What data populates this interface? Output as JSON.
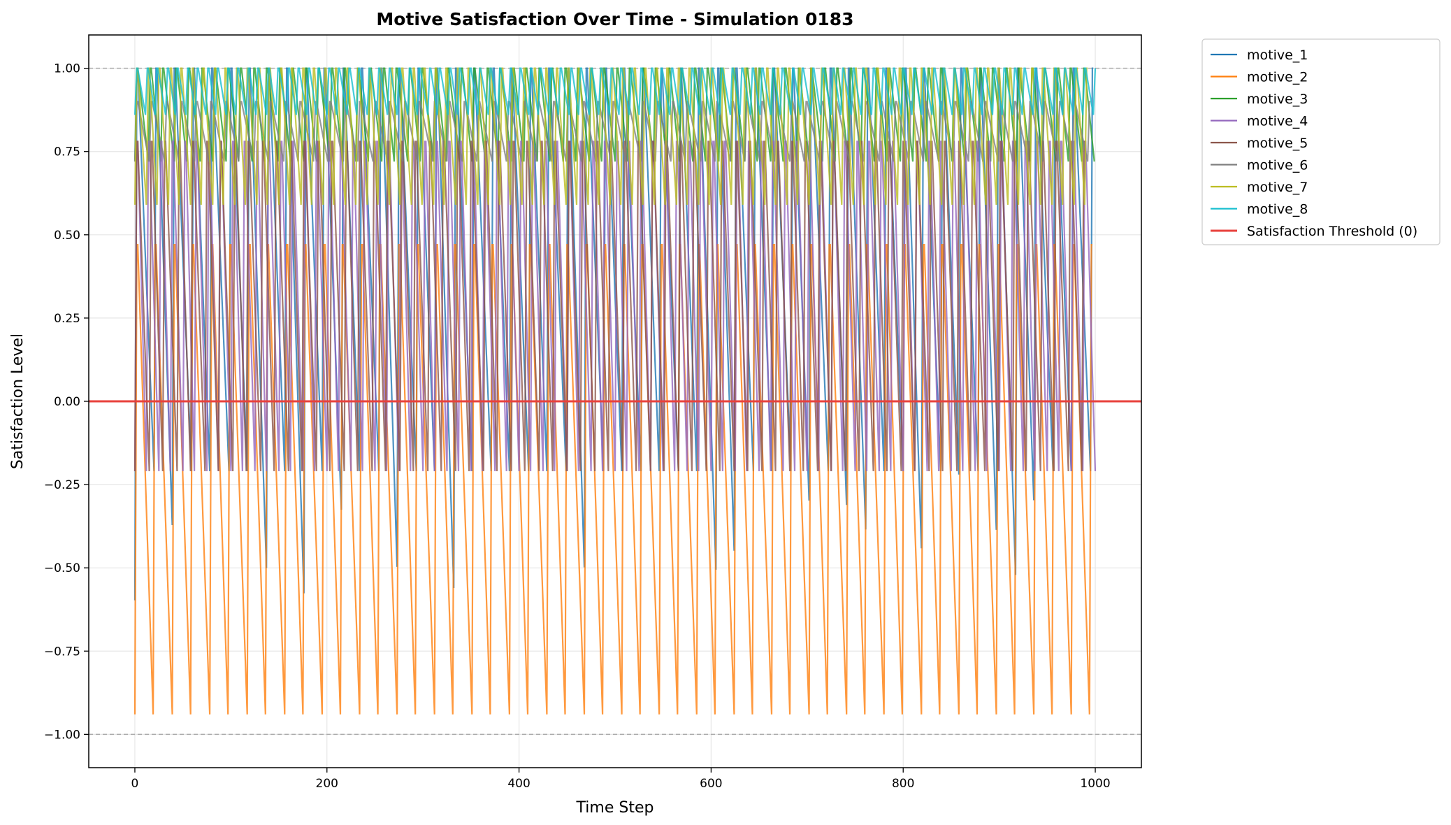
{
  "chart_data": {
    "type": "line",
    "title": "Motive Satisfaction Over Time - Simulation 0183",
    "xlabel": "Time Step",
    "ylabel": "Satisfaction Level",
    "xlim": [
      -48,
      1048
    ],
    "ylim": [
      -1.1,
      1.1
    ],
    "x_ticks": [
      0,
      200,
      400,
      600,
      800,
      1000
    ],
    "x_tick_labels": [
      "0",
      "200",
      "400",
      "600",
      "800",
      "1000"
    ],
    "y_ticks": [
      1.0,
      0.75,
      0.5,
      0.25,
      0.0,
      -0.25,
      -0.5,
      -0.75,
      -1.0
    ],
    "y_tick_labels": [
      "1.00",
      "0.75",
      "0.50",
      "0.25",
      "0.00",
      "−0.25",
      "−0.50",
      "−0.75",
      "−1.00"
    ],
    "grid": true,
    "legend_position": "outside-top-right",
    "reference_lines": [
      {
        "y": 1.0,
        "style": "dashed",
        "color": "#aaaaaa"
      },
      {
        "y": -1.0,
        "style": "dashed",
        "color": "#aaaaaa"
      }
    ],
    "threshold": {
      "name": "Satisfaction Threshold (0)",
      "y": 0.0,
      "color": "#e8413c"
    },
    "x_range": [
      0,
      1000
    ],
    "series": [
      {
        "name": "motive_1",
        "color": "#1f77b4",
        "period": 20,
        "peak": 1.0,
        "trough": -0.21,
        "deep_trough": -0.42
      },
      {
        "name": "motive_2",
        "color": "#ff7f0e",
        "period": 20,
        "peak": 0.47,
        "trough": -0.94
      },
      {
        "name": "motive_3",
        "color": "#2ca02c",
        "period": 14,
        "peak": 1.0,
        "trough": 0.72
      },
      {
        "name": "motive_4",
        "color": "#9467bd",
        "period": 13,
        "peak": 0.78,
        "trough": -0.21
      },
      {
        "name": "motive_5",
        "color": "#8c564b",
        "period": 15,
        "peak": 0.78,
        "trough": -0.21
      },
      {
        "name": "motive_6",
        "color": "#7f7f7f",
        "period": 16,
        "peak": 0.9,
        "trough": 0.72
      },
      {
        "name": "motive_7",
        "color": "#bcbd22",
        "period": 12,
        "peak": 1.0,
        "trough": 0.59
      },
      {
        "name": "motive_8",
        "color": "#17becf",
        "period": 11,
        "peak": 1.0,
        "trough": 0.86
      }
    ]
  }
}
